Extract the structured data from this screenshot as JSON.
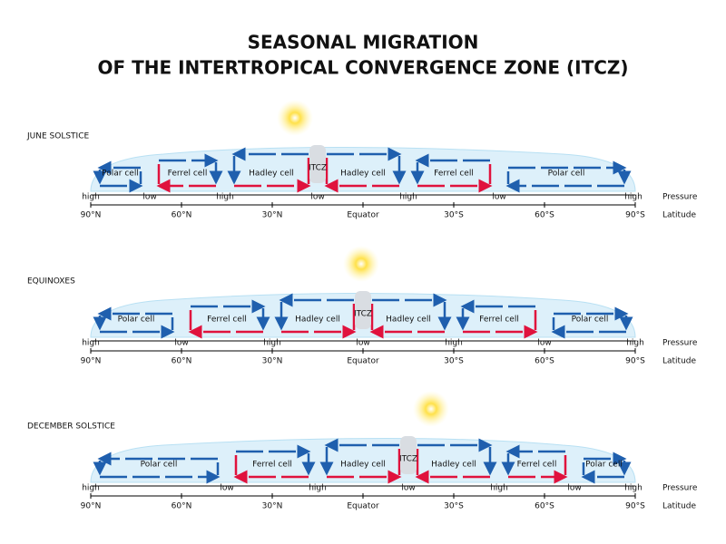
{
  "title": [
    "SEASONAL MIGRATION",
    "OF THE INTERTROPICAL CONVERGENCE ZONE (ITCZ)"
  ],
  "panels": [
    {
      "label": "JUNE SOLSTICE",
      "cells": [
        "Polar cell",
        "Ferrel cell",
        "Hadley cell",
        "Hadley cell",
        "Ferrel cell",
        "Polar cell"
      ],
      "itcz": "ITCZ",
      "pressure": [
        "high",
        "low",
        "high",
        "low",
        "high",
        "low",
        "high"
      ]
    },
    {
      "label": "EQUINOXES",
      "cells": [
        "Polar cell",
        "Ferrel cell",
        "Hadley cell",
        "Hadley cell",
        "Ferrel cell",
        "Polar cell"
      ],
      "itcz": "ITCZ",
      "pressure": [
        "high",
        "low",
        "high",
        "low",
        "high",
        "low",
        "high"
      ]
    },
    {
      "label": "DECEMBER SOLSTICE",
      "cells": [
        "Polar cell",
        "Ferrel cell",
        "Hadley cell",
        "Hadley cell",
        "Ferrel cell",
        "Polar cell"
      ],
      "itcz": "ITCZ",
      "pressure": [
        "high",
        "low",
        "high",
        "low",
        "high",
        "low",
        "high"
      ]
    }
  ],
  "latitude": [
    "90°N",
    "60°N",
    "30°N",
    "Equator",
    "30°S",
    "60°S",
    "90°S"
  ],
  "pressure_title": "Pressure",
  "latitude_title": "Latitude"
}
